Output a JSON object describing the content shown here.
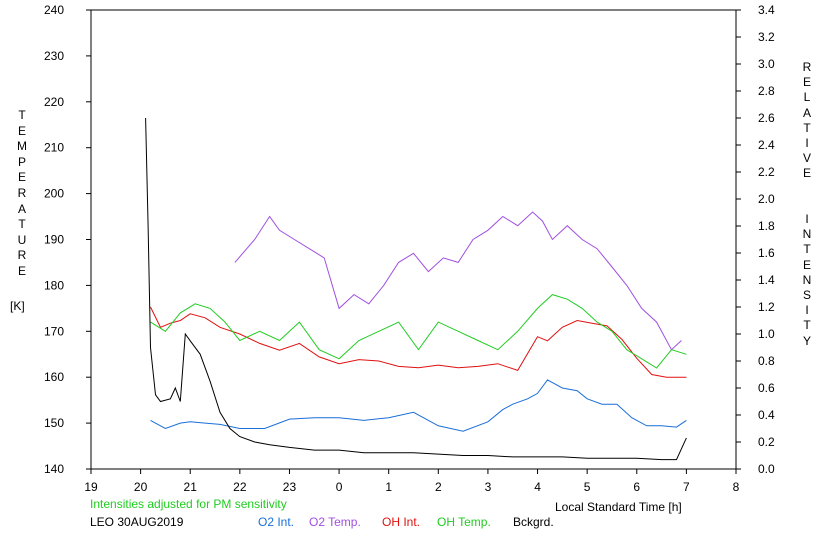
{
  "chart_data": {
    "type": "line",
    "left_axis": {
      "label": "TEMPERATURE",
      "unit": "[K]",
      "ylim": [
        140,
        240
      ],
      "ticks": [
        "140",
        "150",
        "160",
        "170",
        "180",
        "190",
        "200",
        "210",
        "220",
        "230",
        "240"
      ]
    },
    "right_axis": {
      "label": "RELATIVE  INTENSITY",
      "ylim": [
        0.0,
        3.4
      ],
      "ticks": [
        "0.0",
        "0.2",
        "0.4",
        "0.6",
        "0.8",
        "1.0",
        "1.2",
        "1.4",
        "1.6",
        "1.8",
        "2.0",
        "2.2",
        "2.4",
        "2.6",
        "2.8",
        "3.0",
        "3.2",
        "3.4"
      ]
    },
    "x_axis": {
      "label": "Local Standard Time [h]",
      "xlim": [
        19,
        32
      ],
      "ticks": [
        "19",
        "20",
        "21",
        "22",
        "23",
        "0",
        "1",
        "2",
        "3",
        "4",
        "5",
        "6",
        "7",
        "8"
      ]
    },
    "note": "Intensities adjusted for PM sensitivity",
    "station": "LEO 30AUG2019",
    "series": [
      {
        "name": "O2 Int.",
        "axis": "right",
        "color": "#1a6fd8",
        "x": [
          20.2,
          20.5,
          20.8,
          21.0,
          21.3,
          21.6,
          22.0,
          22.5,
          23.0,
          23.5,
          24.0,
          24.5,
          25.0,
          25.5,
          26.0,
          26.5,
          27.0,
          27.3,
          27.5,
          27.8,
          28.0,
          28.2,
          28.5,
          28.8,
          29.0,
          29.3,
          29.6,
          29.9,
          30.2,
          30.5,
          30.8,
          31.0
        ],
        "values": [
          0.36,
          0.3,
          0.34,
          0.35,
          0.34,
          0.33,
          0.3,
          0.3,
          0.37,
          0.38,
          0.38,
          0.36,
          0.38,
          0.42,
          0.32,
          0.28,
          0.35,
          0.44,
          0.48,
          0.52,
          0.56,
          0.66,
          0.6,
          0.58,
          0.52,
          0.48,
          0.48,
          0.38,
          0.32,
          0.32,
          0.31,
          0.36
        ]
      },
      {
        "name": "O2 Temp.",
        "axis": "left",
        "color": "#a050e0",
        "x": [
          21.9,
          22.3,
          22.6,
          22.8,
          23.1,
          23.4,
          23.7,
          24.0,
          24.3,
          24.6,
          24.9,
          25.2,
          25.5,
          25.8,
          26.1,
          26.4,
          26.7,
          27.0,
          27.3,
          27.6,
          27.9,
          28.1,
          28.3,
          28.6,
          28.9,
          29.2,
          29.5,
          29.8,
          30.1,
          30.4,
          30.7,
          30.9
        ],
        "values": [
          185,
          190,
          195,
          192,
          190,
          188,
          186,
          175,
          178,
          176,
          180,
          185,
          187,
          183,
          186,
          185,
          190,
          192,
          195,
          193,
          196,
          194,
          190,
          193,
          190,
          188,
          184,
          180,
          175,
          172,
          166,
          168
        ]
      },
      {
        "name": "OH Int.",
        "axis": "right",
        "color": "#e01010",
        "x": [
          20.2,
          20.4,
          20.6,
          20.8,
          21.0,
          21.3,
          21.6,
          22.0,
          22.4,
          22.8,
          23.2,
          23.6,
          24.0,
          24.4,
          24.8,
          25.2,
          25.6,
          26.0,
          26.4,
          26.8,
          27.2,
          27.6,
          28.0,
          28.2,
          28.5,
          28.8,
          29.1,
          29.4,
          29.7,
          30.0,
          30.3,
          30.6,
          31.0
        ],
        "values": [
          1.2,
          1.05,
          1.08,
          1.1,
          1.15,
          1.12,
          1.05,
          1.0,
          0.93,
          0.88,
          0.93,
          0.83,
          0.78,
          0.81,
          0.8,
          0.76,
          0.75,
          0.77,
          0.75,
          0.76,
          0.78,
          0.73,
          0.98,
          0.95,
          1.05,
          1.1,
          1.08,
          1.06,
          0.96,
          0.82,
          0.7,
          0.68,
          0.68
        ]
      },
      {
        "name": "OH Temp.",
        "axis": "left",
        "color": "#22cc22",
        "x": [
          20.2,
          20.5,
          20.8,
          21.1,
          21.4,
          21.7,
          22.0,
          22.4,
          22.8,
          23.2,
          23.6,
          24.0,
          24.4,
          24.8,
          25.2,
          25.6,
          26.0,
          26.4,
          26.8,
          27.2,
          27.6,
          28.0,
          28.3,
          28.6,
          28.9,
          29.2,
          29.5,
          29.8,
          30.1,
          30.4,
          30.7,
          31.0
        ],
        "values": [
          172,
          170,
          174,
          176,
          175,
          172,
          168,
          170,
          168,
          172,
          166,
          164,
          168,
          170,
          172,
          166,
          172,
          170,
          168,
          166,
          170,
          175,
          178,
          177,
          175,
          172,
          170,
          166,
          164,
          162,
          166,
          165
        ]
      },
      {
        "name": "Bckgrd.",
        "axis": "right",
        "color": "#000000",
        "x": [
          20.1,
          20.15,
          20.2,
          20.3,
          20.4,
          20.6,
          20.7,
          20.8,
          20.9,
          21.0,
          21.2,
          21.4,
          21.6,
          21.8,
          22.0,
          22.3,
          22.6,
          23.0,
          23.5,
          24.0,
          24.5,
          25.0,
          25.5,
          26.0,
          26.5,
          27.0,
          27.5,
          28.0,
          28.5,
          29.0,
          29.5,
          30.0,
          30.5,
          30.8,
          31.0
        ],
        "values": [
          2.6,
          1.8,
          0.9,
          0.55,
          0.5,
          0.52,
          0.6,
          0.5,
          1.0,
          0.95,
          0.85,
          0.65,
          0.42,
          0.3,
          0.24,
          0.2,
          0.18,
          0.16,
          0.14,
          0.14,
          0.12,
          0.12,
          0.12,
          0.11,
          0.1,
          0.1,
          0.09,
          0.09,
          0.09,
          0.08,
          0.08,
          0.08,
          0.07,
          0.07,
          0.23
        ]
      }
    ]
  }
}
